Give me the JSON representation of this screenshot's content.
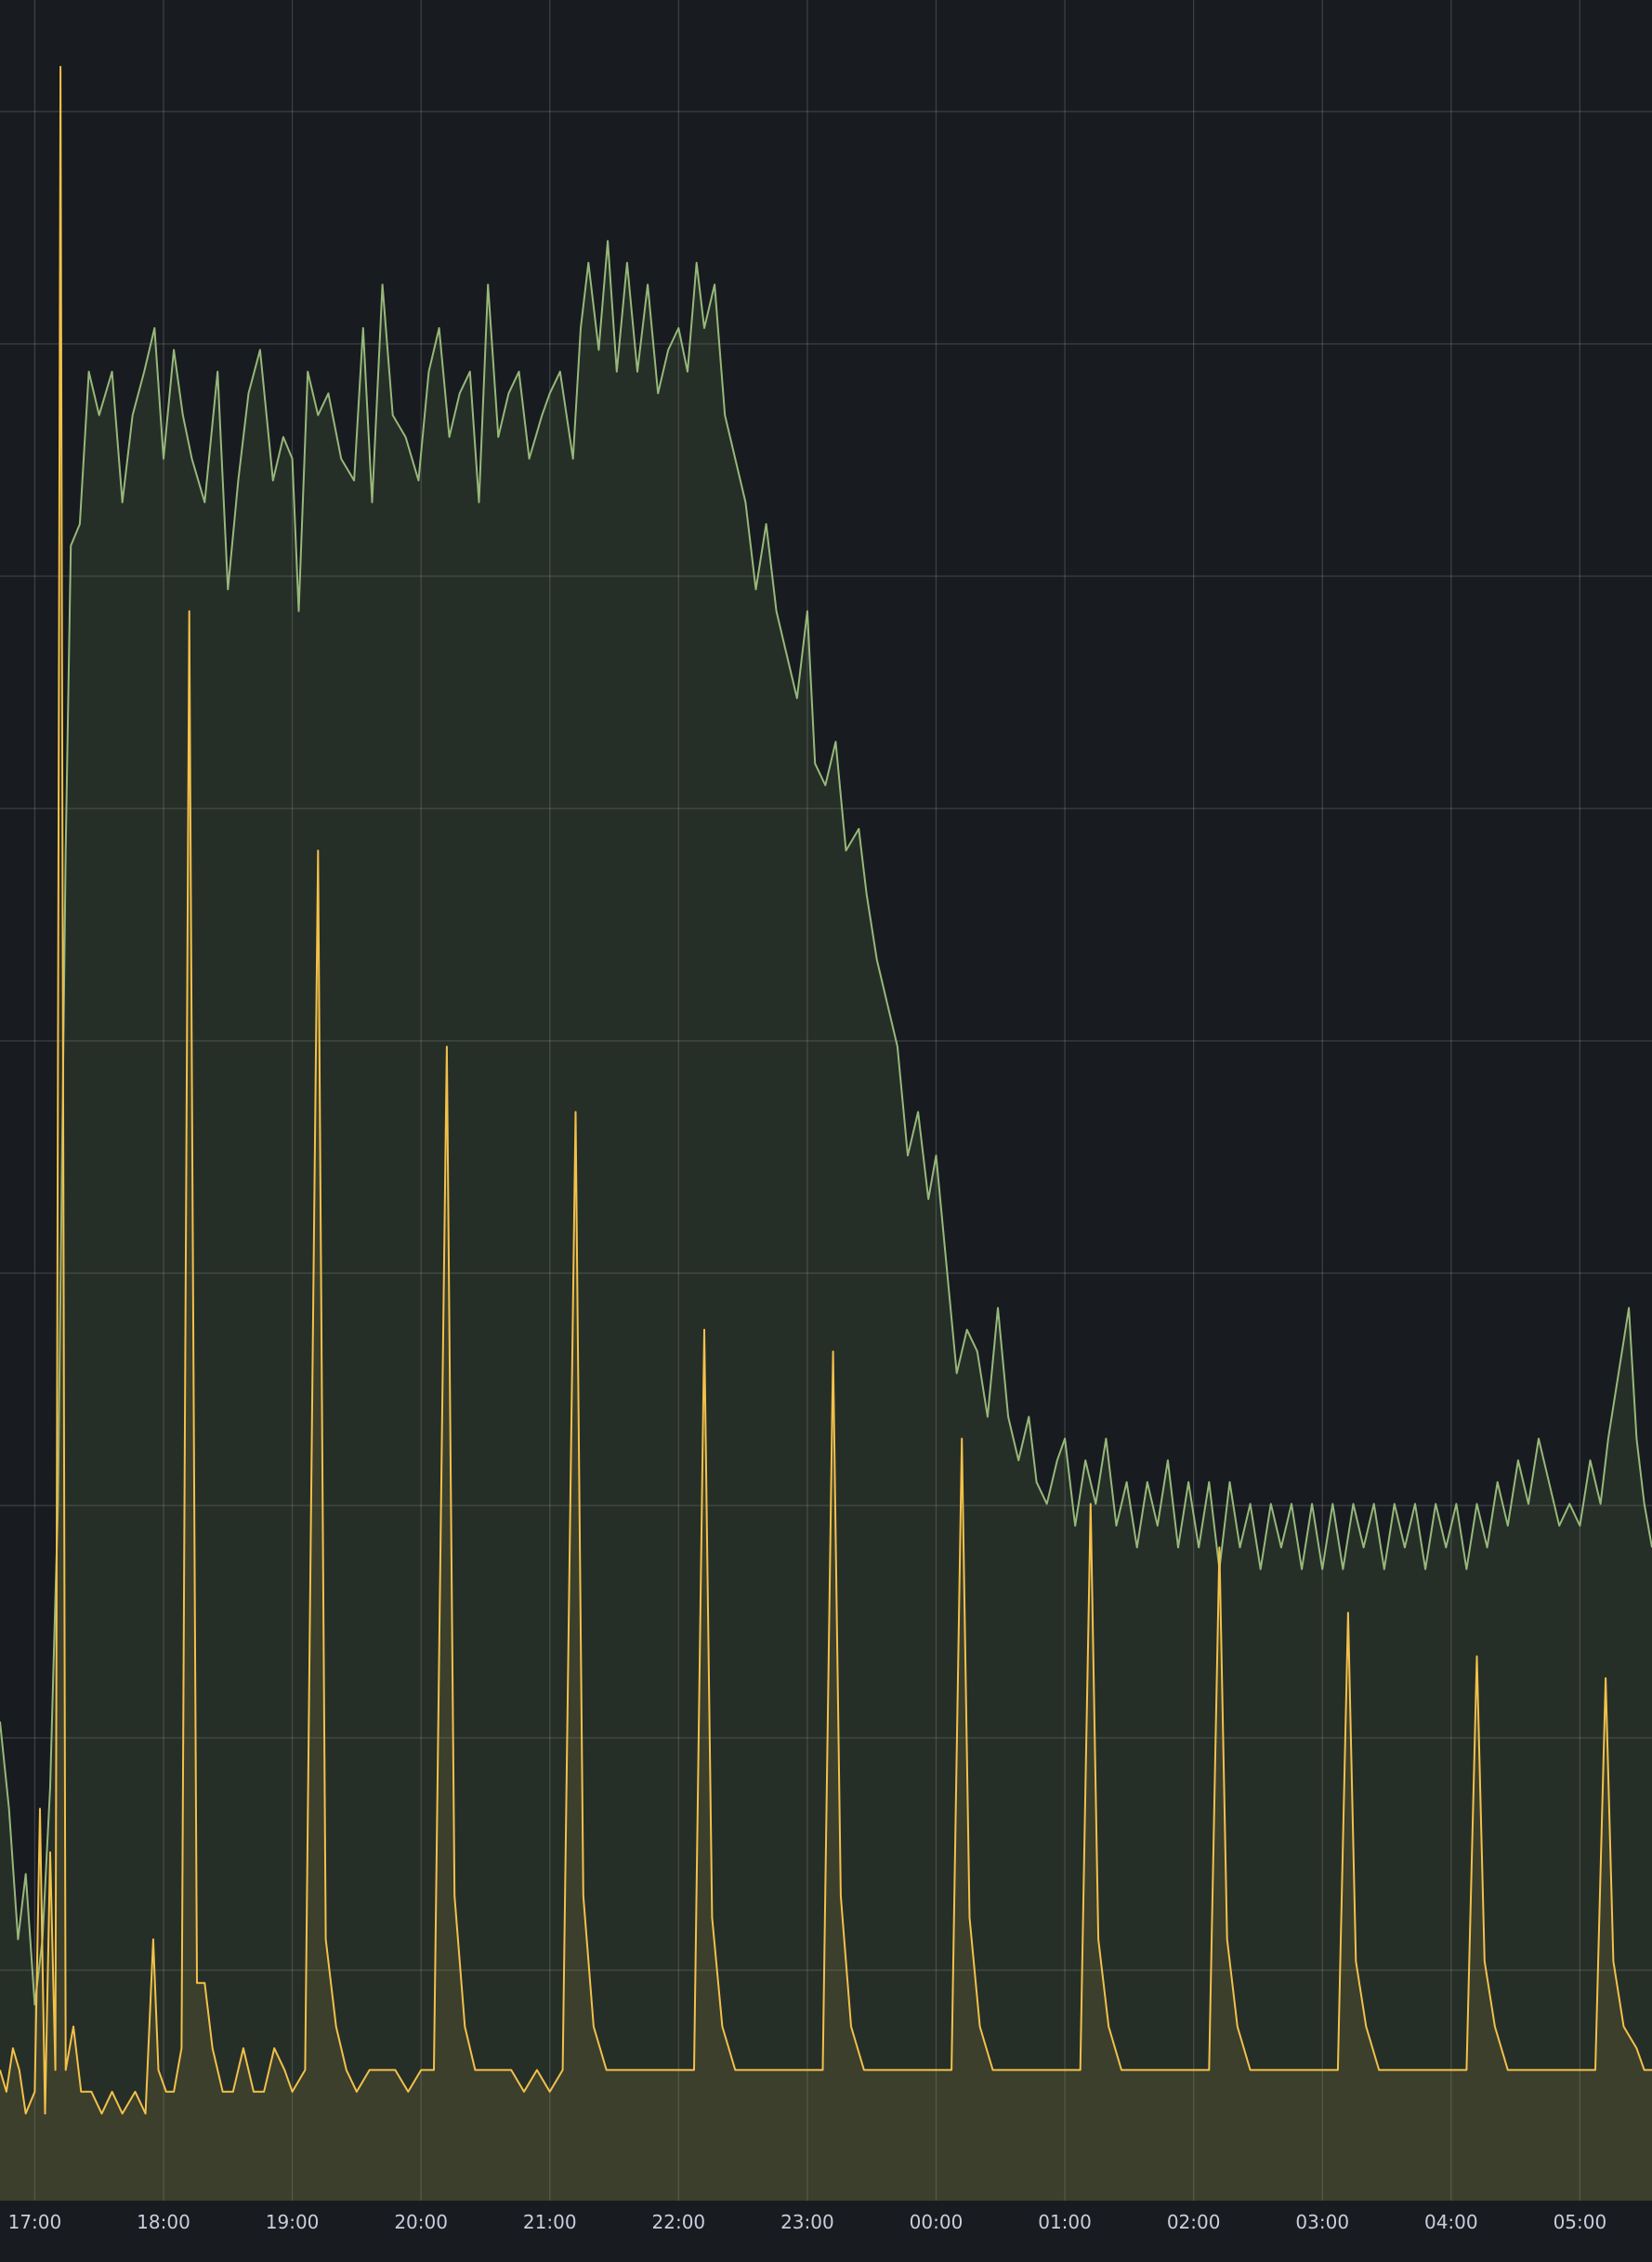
{
  "chart_data": {
    "type": "line",
    "title": "",
    "xlabel": "",
    "ylabel": "",
    "grid": true,
    "legend": "none",
    "x_ticks": [
      "17:00",
      "18:00",
      "19:00",
      "20:00",
      "21:00",
      "22:00",
      "23:00",
      "00:00",
      "01:00",
      "02:00",
      "03:00",
      "04:00",
      "05:00"
    ],
    "xlim": [
      -0.27,
      12.56
    ],
    "ylim": [
      0,
      100
    ],
    "series": [
      {
        "color": "#96b87a",
        "fill": "rgba(115,140,90,0.17)",
        "points": [
          [
            -0.27,
            22
          ],
          [
            -0.2,
            18
          ],
          [
            -0.13,
            12
          ],
          [
            -0.07,
            15
          ],
          [
            0,
            9
          ],
          [
            0.06,
            12
          ],
          [
            0.12,
            19
          ],
          [
            0.18,
            32
          ],
          [
            0.24,
            62
          ],
          [
            0.28,
            76
          ],
          [
            0.35,
            77
          ],
          [
            0.42,
            84
          ],
          [
            0.5,
            82
          ],
          [
            0.6,
            84
          ],
          [
            0.68,
            78
          ],
          [
            0.76,
            82
          ],
          [
            0.85,
            84
          ],
          [
            0.93,
            86
          ],
          [
            1.0,
            80
          ],
          [
            1.08,
            85
          ],
          [
            1.15,
            82
          ],
          [
            1.22,
            80
          ],
          [
            1.32,
            78
          ],
          [
            1.42,
            84
          ],
          [
            1.5,
            74
          ],
          [
            1.58,
            79
          ],
          [
            1.66,
            83
          ],
          [
            1.75,
            85
          ],
          [
            1.85,
            79
          ],
          [
            1.93,
            81
          ],
          [
            2.0,
            80
          ],
          [
            2.05,
            73
          ],
          [
            2.12,
            84
          ],
          [
            2.2,
            82
          ],
          [
            2.28,
            83
          ],
          [
            2.38,
            80
          ],
          [
            2.48,
            79
          ],
          [
            2.55,
            86
          ],
          [
            2.62,
            78
          ],
          [
            2.7,
            88
          ],
          [
            2.78,
            82
          ],
          [
            2.88,
            81
          ],
          [
            2.98,
            79
          ],
          [
            3.06,
            84
          ],
          [
            3.14,
            86
          ],
          [
            3.22,
            81
          ],
          [
            3.3,
            83
          ],
          [
            3.38,
            84
          ],
          [
            3.45,
            78
          ],
          [
            3.52,
            88
          ],
          [
            3.6,
            81
          ],
          [
            3.68,
            83
          ],
          [
            3.76,
            84
          ],
          [
            3.84,
            80
          ],
          [
            3.94,
            82
          ],
          [
            4.0,
            83
          ],
          [
            4.08,
            84
          ],
          [
            4.18,
            80
          ],
          [
            4.24,
            86
          ],
          [
            4.3,
            89
          ],
          [
            4.38,
            85
          ],
          [
            4.45,
            90
          ],
          [
            4.52,
            84
          ],
          [
            4.6,
            89
          ],
          [
            4.68,
            84
          ],
          [
            4.76,
            88
          ],
          [
            4.84,
            83
          ],
          [
            4.92,
            85
          ],
          [
            5.0,
            86
          ],
          [
            5.07,
            84
          ],
          [
            5.14,
            89
          ],
          [
            5.2,
            86
          ],
          [
            5.28,
            88
          ],
          [
            5.36,
            82
          ],
          [
            5.44,
            80
          ],
          [
            5.52,
            78
          ],
          [
            5.6,
            74
          ],
          [
            5.68,
            77
          ],
          [
            5.76,
            73
          ],
          [
            5.84,
            71
          ],
          [
            5.92,
            69
          ],
          [
            6.0,
            73
          ],
          [
            6.06,
            66
          ],
          [
            6.14,
            65
          ],
          [
            6.22,
            67
          ],
          [
            6.3,
            62
          ],
          [
            6.4,
            63
          ],
          [
            6.46,
            60
          ],
          [
            6.54,
            57
          ],
          [
            6.62,
            55
          ],
          [
            6.7,
            53
          ],
          [
            6.78,
            48
          ],
          [
            6.86,
            50
          ],
          [
            6.94,
            46
          ],
          [
            7.0,
            48
          ],
          [
            7.08,
            43
          ],
          [
            7.16,
            38
          ],
          [
            7.24,
            40
          ],
          [
            7.32,
            39
          ],
          [
            7.4,
            36
          ],
          [
            7.48,
            41
          ],
          [
            7.56,
            36
          ],
          [
            7.64,
            34
          ],
          [
            7.72,
            36
          ],
          [
            7.78,
            33
          ],
          [
            7.86,
            32
          ],
          [
            7.94,
            34
          ],
          [
            8.0,
            35
          ],
          [
            8.08,
            31
          ],
          [
            8.16,
            34
          ],
          [
            8.24,
            32
          ],
          [
            8.32,
            35
          ],
          [
            8.4,
            31
          ],
          [
            8.48,
            33
          ],
          [
            8.56,
            30
          ],
          [
            8.64,
            33
          ],
          [
            8.72,
            31
          ],
          [
            8.8,
            34
          ],
          [
            8.88,
            30
          ],
          [
            8.96,
            33
          ],
          [
            9.04,
            30
          ],
          [
            9.12,
            33
          ],
          [
            9.2,
            29
          ],
          [
            9.28,
            33
          ],
          [
            9.36,
            30
          ],
          [
            9.44,
            32
          ],
          [
            9.52,
            29
          ],
          [
            9.6,
            32
          ],
          [
            9.68,
            30
          ],
          [
            9.76,
            32
          ],
          [
            9.84,
            29
          ],
          [
            9.92,
            32
          ],
          [
            10.0,
            29
          ],
          [
            10.08,
            32
          ],
          [
            10.16,
            29
          ],
          [
            10.24,
            32
          ],
          [
            10.32,
            30
          ],
          [
            10.4,
            32
          ],
          [
            10.48,
            29
          ],
          [
            10.56,
            32
          ],
          [
            10.64,
            30
          ],
          [
            10.72,
            32
          ],
          [
            10.8,
            29
          ],
          [
            10.88,
            32
          ],
          [
            10.96,
            30
          ],
          [
            11.04,
            32
          ],
          [
            11.12,
            29
          ],
          [
            11.2,
            32
          ],
          [
            11.28,
            30
          ],
          [
            11.36,
            33
          ],
          [
            11.44,
            31
          ],
          [
            11.52,
            34
          ],
          [
            11.6,
            32
          ],
          [
            11.68,
            35
          ],
          [
            11.76,
            33
          ],
          [
            11.84,
            31
          ],
          [
            11.92,
            32
          ],
          [
            12.0,
            31
          ],
          [
            12.08,
            34
          ],
          [
            12.16,
            32
          ],
          [
            12.22,
            35
          ],
          [
            12.3,
            38
          ],
          [
            12.38,
            41
          ],
          [
            12.44,
            35
          ],
          [
            12.5,
            32
          ],
          [
            12.56,
            30
          ]
        ]
      },
      {
        "color": "#f2c14a",
        "fill": "rgba(180,160,70,0.15)",
        "points": [
          [
            -0.27,
            6
          ],
          [
            -0.22,
            5
          ],
          [
            -0.17,
            7
          ],
          [
            -0.12,
            6
          ],
          [
            -0.07,
            4
          ],
          [
            0.0,
            5
          ],
          [
            0.04,
            18
          ],
          [
            0.08,
            4
          ],
          [
            0.12,
            16
          ],
          [
            0.16,
            6
          ],
          [
            0.2,
            98
          ],
          [
            0.24,
            6
          ],
          [
            0.3,
            8
          ],
          [
            0.36,
            5
          ],
          [
            0.44,
            5
          ],
          [
            0.52,
            4
          ],
          [
            0.6,
            5
          ],
          [
            0.68,
            4
          ],
          [
            0.78,
            5
          ],
          [
            0.86,
            4
          ],
          [
            0.92,
            12
          ],
          [
            0.96,
            6
          ],
          [
            1.02,
            5
          ],
          [
            1.08,
            5
          ],
          [
            1.14,
            7
          ],
          [
            1.2,
            73
          ],
          [
            1.26,
            10
          ],
          [
            1.32,
            10
          ],
          [
            1.38,
            7
          ],
          [
            1.46,
            5
          ],
          [
            1.54,
            5
          ],
          [
            1.62,
            7
          ],
          [
            1.7,
            5
          ],
          [
            1.78,
            5
          ],
          [
            1.86,
            7
          ],
          [
            1.94,
            6
          ],
          [
            2.0,
            5
          ],
          [
            2.1,
            6
          ],
          [
            2.2,
            62
          ],
          [
            2.26,
            12
          ],
          [
            2.34,
            8
          ],
          [
            2.42,
            6
          ],
          [
            2.5,
            5
          ],
          [
            2.6,
            6
          ],
          [
            2.7,
            6
          ],
          [
            2.8,
            6
          ],
          [
            2.9,
            5
          ],
          [
            3.0,
            6
          ],
          [
            3.1,
            6
          ],
          [
            3.2,
            53
          ],
          [
            3.26,
            14
          ],
          [
            3.34,
            8
          ],
          [
            3.42,
            6
          ],
          [
            3.5,
            6
          ],
          [
            3.6,
            6
          ],
          [
            3.7,
            6
          ],
          [
            3.8,
            5
          ],
          [
            3.9,
            6
          ],
          [
            4.0,
            5
          ],
          [
            4.1,
            6
          ],
          [
            4.2,
            50
          ],
          [
            4.26,
            14
          ],
          [
            4.34,
            8
          ],
          [
            4.44,
            6
          ],
          [
            4.54,
            6
          ],
          [
            4.64,
            6
          ],
          [
            4.74,
            6
          ],
          [
            4.84,
            6
          ],
          [
            4.94,
            6
          ],
          [
            5.04,
            6
          ],
          [
            5.12,
            6
          ],
          [
            5.2,
            40
          ],
          [
            5.26,
            13
          ],
          [
            5.34,
            8
          ],
          [
            5.44,
            6
          ],
          [
            5.54,
            6
          ],
          [
            5.64,
            6
          ],
          [
            5.74,
            6
          ],
          [
            5.84,
            6
          ],
          [
            5.94,
            6
          ],
          [
            6.04,
            6
          ],
          [
            6.12,
            6
          ],
          [
            6.2,
            39
          ],
          [
            6.26,
            14
          ],
          [
            6.34,
            8
          ],
          [
            6.44,
            6
          ],
          [
            6.54,
            6
          ],
          [
            6.64,
            6
          ],
          [
            6.74,
            6
          ],
          [
            6.84,
            6
          ],
          [
            6.94,
            6
          ],
          [
            7.04,
            6
          ],
          [
            7.12,
            6
          ],
          [
            7.2,
            35
          ],
          [
            7.26,
            13
          ],
          [
            7.34,
            8
          ],
          [
            7.44,
            6
          ],
          [
            7.54,
            6
          ],
          [
            7.64,
            6
          ],
          [
            7.74,
            6
          ],
          [
            7.84,
            6
          ],
          [
            7.94,
            6
          ],
          [
            8.04,
            6
          ],
          [
            8.12,
            6
          ],
          [
            8.2,
            32
          ],
          [
            8.26,
            12
          ],
          [
            8.34,
            8
          ],
          [
            8.44,
            6
          ],
          [
            8.54,
            6
          ],
          [
            8.64,
            6
          ],
          [
            8.74,
            6
          ],
          [
            8.84,
            6
          ],
          [
            8.94,
            6
          ],
          [
            9.04,
            6
          ],
          [
            9.12,
            6
          ],
          [
            9.2,
            30
          ],
          [
            9.26,
            12
          ],
          [
            9.34,
            8
          ],
          [
            9.44,
            6
          ],
          [
            9.54,
            6
          ],
          [
            9.64,
            6
          ],
          [
            9.74,
            6
          ],
          [
            9.84,
            6
          ],
          [
            9.94,
            6
          ],
          [
            10.04,
            6
          ],
          [
            10.12,
            6
          ],
          [
            10.2,
            27
          ],
          [
            10.26,
            11
          ],
          [
            10.34,
            8
          ],
          [
            10.44,
            6
          ],
          [
            10.54,
            6
          ],
          [
            10.64,
            6
          ],
          [
            10.74,
            6
          ],
          [
            10.84,
            6
          ],
          [
            10.94,
            6
          ],
          [
            11.04,
            6
          ],
          [
            11.12,
            6
          ],
          [
            11.2,
            25
          ],
          [
            11.26,
            11
          ],
          [
            11.34,
            8
          ],
          [
            11.44,
            6
          ],
          [
            11.54,
            6
          ],
          [
            11.64,
            6
          ],
          [
            11.74,
            6
          ],
          [
            11.84,
            6
          ],
          [
            11.94,
            6
          ],
          [
            12.04,
            6
          ],
          [
            12.12,
            6
          ],
          [
            12.2,
            24
          ],
          [
            12.26,
            11
          ],
          [
            12.34,
            8
          ],
          [
            12.44,
            7
          ],
          [
            12.5,
            6
          ],
          [
            12.56,
            6
          ]
        ]
      }
    ]
  }
}
